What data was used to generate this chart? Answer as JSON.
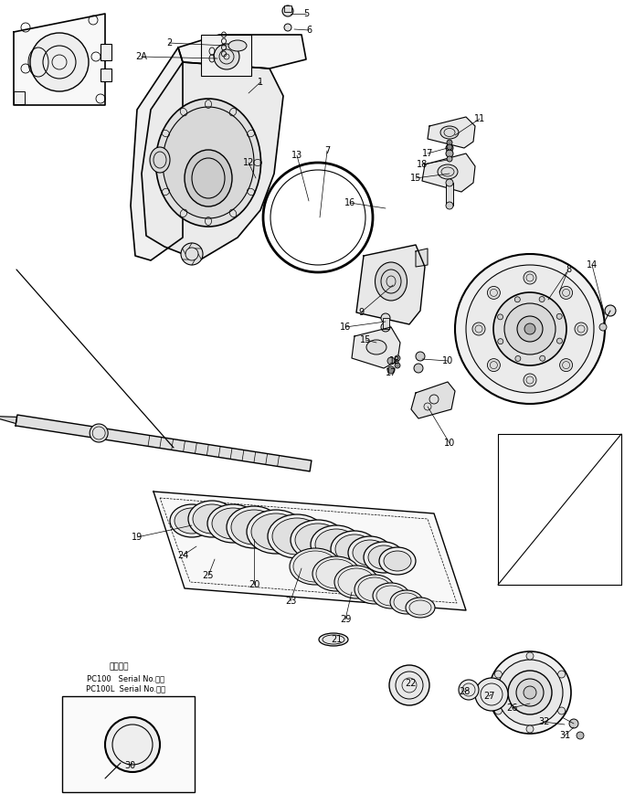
{
  "background_color": "#ffffff",
  "line_color": "#000000",
  "fig_width": 6.95,
  "fig_height": 8.8,
  "dpi": 100,
  "note_text1": "通用号版",
  "note_text2": "PC100   Serial No.・～",
  "note_text3": "PC100L  Serial No.・～"
}
